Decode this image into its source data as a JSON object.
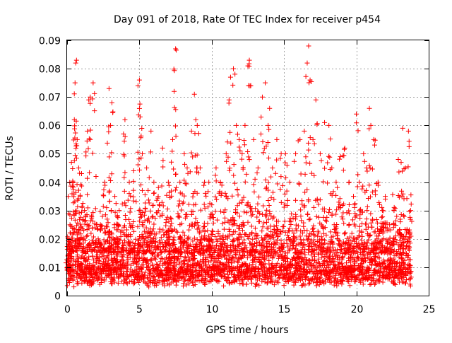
{
  "chart_data": {
    "type": "scatter",
    "title": "Day 091 of 2018, Rate Of TEC Index for receiver p454",
    "xlabel": "GPS time / hours",
    "ylabel": "ROTI / TECUs",
    "xlim": [
      0,
      25
    ],
    "ylim": [
      0,
      0.09
    ],
    "xticks": [
      "0",
      "5",
      "10",
      "15",
      "20",
      "25"
    ],
    "yticks": [
      "0",
      "0.01",
      "0.02",
      "0.03",
      "0.04",
      "0.05",
      "0.06",
      "0.07",
      "0.08",
      "0.09"
    ],
    "grid": true,
    "marker": "plus",
    "color": "#ff0000",
    "series": [
      {
        "name": "p454",
        "points": [
          [
            0.0,
            0.009
          ],
          [
            0.1,
            0.012
          ],
          [
            0.2,
            0.025
          ],
          [
            0.3,
            0.047
          ],
          [
            0.4,
            0.04
          ],
          [
            0.5,
            0.062
          ],
          [
            0.55,
            0.075
          ],
          [
            0.6,
            0.082
          ],
          [
            0.65,
            0.083
          ],
          [
            0.7,
            0.055
          ],
          [
            0.8,
            0.045
          ],
          [
            0.9,
            0.035
          ],
          [
            1.0,
            0.043
          ],
          [
            1.2,
            0.03
          ],
          [
            1.4,
            0.058
          ],
          [
            1.5,
            0.069
          ],
          [
            1.6,
            0.07
          ],
          [
            1.8,
            0.075
          ],
          [
            2.0,
            0.042
          ],
          [
            2.3,
            0.025
          ],
          [
            2.6,
            0.04
          ],
          [
            2.9,
            0.073
          ],
          [
            3.0,
            0.06
          ],
          [
            3.1,
            0.068
          ],
          [
            3.3,
            0.035
          ],
          [
            3.6,
            0.03
          ],
          [
            3.9,
            0.057
          ],
          [
            4.0,
            0.062
          ],
          [
            4.3,
            0.04
          ],
          [
            4.6,
            0.044
          ],
          [
            4.9,
            0.074
          ],
          [
            5.0,
            0.076
          ],
          [
            5.05,
            0.063
          ],
          [
            5.2,
            0.05
          ],
          [
            5.5,
            0.045
          ],
          [
            5.8,
            0.058
          ],
          [
            6.0,
            0.04
          ],
          [
            6.3,
            0.035
          ],
          [
            6.6,
            0.052
          ],
          [
            7.0,
            0.04
          ],
          [
            7.3,
            0.055
          ],
          [
            7.4,
            0.072
          ],
          [
            7.5,
            0.087
          ],
          [
            7.8,
            0.04
          ],
          [
            8.1,
            0.05
          ],
          [
            8.3,
            0.045
          ],
          [
            8.6,
            0.058
          ],
          [
            8.8,
            0.071
          ],
          [
            8.9,
            0.062
          ],
          [
            9.0,
            0.06
          ],
          [
            9.2,
            0.045
          ],
          [
            9.5,
            0.04
          ],
          [
            9.8,
            0.04
          ],
          [
            10.0,
            0.032
          ],
          [
            10.3,
            0.045
          ],
          [
            10.6,
            0.04
          ],
          [
            11.0,
            0.05
          ],
          [
            11.2,
            0.069
          ],
          [
            11.3,
            0.077
          ],
          [
            11.5,
            0.08
          ],
          [
            11.7,
            0.06
          ],
          [
            11.9,
            0.055
          ],
          [
            12.1,
            0.05
          ],
          [
            12.3,
            0.06
          ],
          [
            12.5,
            0.081
          ],
          [
            12.6,
            0.083
          ],
          [
            12.7,
            0.074
          ],
          [
            12.9,
            0.055
          ],
          [
            13.2,
            0.045
          ],
          [
            13.5,
            0.07
          ],
          [
            13.7,
            0.075
          ],
          [
            13.9,
            0.06
          ],
          [
            14.0,
            0.066
          ],
          [
            14.2,
            0.045
          ],
          [
            14.5,
            0.055
          ],
          [
            14.8,
            0.05
          ],
          [
            15.1,
            0.05
          ],
          [
            15.4,
            0.04
          ],
          [
            15.8,
            0.05
          ],
          [
            16.1,
            0.055
          ],
          [
            16.4,
            0.058
          ],
          [
            16.6,
            0.082
          ],
          [
            16.7,
            0.088
          ],
          [
            16.8,
            0.076
          ],
          [
            17.0,
            0.055
          ],
          [
            17.2,
            0.069
          ],
          [
            17.5,
            0.05
          ],
          [
            17.8,
            0.061
          ],
          [
            18.1,
            0.06
          ],
          [
            18.3,
            0.045
          ],
          [
            18.6,
            0.04
          ],
          [
            18.9,
            0.049
          ],
          [
            19.2,
            0.052
          ],
          [
            19.5,
            0.04
          ],
          [
            19.8,
            0.035
          ],
          [
            20.0,
            0.064
          ],
          [
            20.2,
            0.04
          ],
          [
            20.5,
            0.05
          ],
          [
            20.7,
            0.045
          ],
          [
            20.9,
            0.066
          ],
          [
            21.0,
            0.06
          ],
          [
            21.2,
            0.055
          ],
          [
            21.5,
            0.04
          ],
          [
            21.8,
            0.03
          ],
          [
            22.0,
            0.035
          ],
          [
            22.3,
            0.025
          ],
          [
            22.6,
            0.03
          ],
          [
            22.9,
            0.048
          ],
          [
            23.2,
            0.059
          ],
          [
            23.4,
            0.045
          ],
          [
            23.6,
            0.058
          ],
          [
            23.75,
            0.03
          ]
        ],
        "baseline": {
          "note": "dense band of low-value samples across the full day",
          "x_range": [
            0,
            23.8
          ],
          "y_range": [
            0.003,
            0.022
          ]
        },
        "mid_band": {
          "note": "frequent samples between band and peaks",
          "x_range": [
            0,
            23.8
          ],
          "y_range": [
            0.015,
            0.04
          ]
        }
      }
    ]
  }
}
